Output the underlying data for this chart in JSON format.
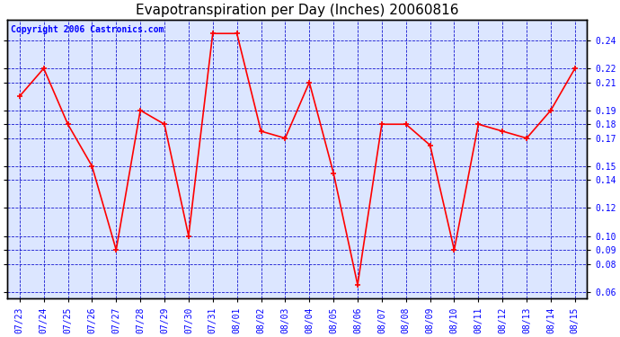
{
  "title": "Evapotranspiration per Day (Inches) 20060816",
  "copyright": "Copyright 2006 Castronics.com",
  "dates": [
    "07/23",
    "07/24",
    "07/25",
    "07/26",
    "07/27",
    "07/28",
    "07/29",
    "07/30",
    "07/31",
    "08/01",
    "08/02",
    "08/03",
    "08/04",
    "08/05",
    "08/06",
    "08/07",
    "08/08",
    "08/09",
    "08/10",
    "08/11",
    "08/12",
    "08/13",
    "08/14",
    "08/15"
  ],
  "values": [
    0.2,
    0.22,
    0.18,
    0.15,
    0.09,
    0.19,
    0.18,
    0.1,
    0.245,
    0.245,
    0.175,
    0.17,
    0.21,
    0.145,
    0.065,
    0.18,
    0.18,
    0.165,
    0.09,
    0.18,
    0.175,
    0.17,
    0.19,
    0.22
  ],
  "ylim": [
    0.055,
    0.255
  ],
  "yticks": [
    0.06,
    0.08,
    0.09,
    0.1,
    0.12,
    0.14,
    0.15,
    0.17,
    0.18,
    0.19,
    0.21,
    0.22,
    0.24
  ],
  "line_color": "red",
  "marker": "+",
  "marker_color": "red",
  "fig_bg": "#ffffff",
  "plot_bg": "#dce6ff",
  "grid_color": "#0000cc",
  "title_fontsize": 11,
  "copyright_fontsize": 7,
  "tick_fontsize": 7,
  "xlabel_fontsize": 7,
  "figwidth": 6.9,
  "figheight": 3.75,
  "dpi": 100
}
